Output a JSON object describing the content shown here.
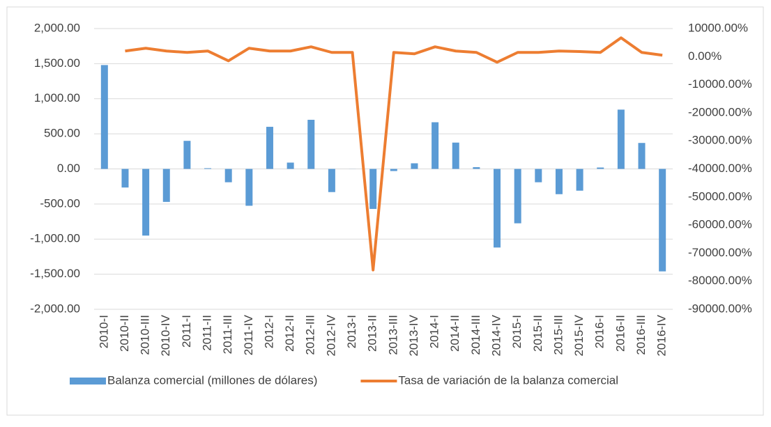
{
  "chart_data": {
    "type": "bar_line",
    "categories": [
      "2010-I",
      "2010-II",
      "2010-III",
      "2010-IV",
      "2011-I",
      "2011-II",
      "2011-III",
      "2011-IV",
      "2012-I",
      "2012-II",
      "2012-III",
      "2012-IV",
      "2013-I",
      "2013-II",
      "2013-III",
      "2013-IV",
      "2014-I",
      "2014-II",
      "2014-III",
      "2014-IV",
      "2015-I",
      "2015-II",
      "2015-III",
      "2015-IV",
      "2016-I",
      "2016-II",
      "2016-III",
      "2016-IV"
    ],
    "series": [
      {
        "name": "Balanza comercial (millones de dólares)",
        "type": "bar",
        "color": "#5b9bd5",
        "values": [
          1480,
          -265,
          -950,
          -470,
          400,
          10,
          -190,
          -525,
          600,
          90,
          700,
          -330,
          1,
          -570,
          -30,
          80,
          665,
          375,
          25,
          -1120,
          -775,
          -190,
          -360,
          -310,
          20,
          845,
          370,
          -1460
        ]
      },
      {
        "name": "Tasa de variación de la balanza comercial",
        "type": "line",
        "color": "#ed7d31",
        "axis": "y2",
        "values": [
          null,
          2000,
          3000,
          2000,
          1500,
          2000,
          -1500,
          3000,
          2000,
          2000,
          3500,
          1500,
          1500,
          -76000,
          1500,
          1000,
          3500,
          2000,
          1500,
          -2000,
          1500,
          1500,
          2000,
          1800,
          1500,
          6700,
          1500,
          500
        ]
      }
    ],
    "ylim": [
      -2000,
      2000
    ],
    "yticks": [
      {
        "value": -2000,
        "label": "-2,000.00"
      },
      {
        "value": -1500,
        "label": "-1,500.00"
      },
      {
        "value": -1000,
        "label": "-1,000.00"
      },
      {
        "value": -500,
        "label": "-500.00"
      },
      {
        "value": 0,
        "label": "0.00"
      },
      {
        "value": 500,
        "label": "500.00"
      },
      {
        "value": 1000,
        "label": "1,000.00"
      },
      {
        "value": 1500,
        "label": "1,500.00"
      },
      {
        "value": 2000,
        "label": "2,000.00"
      }
    ],
    "y2lim": [
      -90000,
      10000
    ],
    "y2ticks": [
      {
        "value": -90000,
        "label": "-90000.00%"
      },
      {
        "value": -80000,
        "label": "-80000.00%"
      },
      {
        "value": -70000,
        "label": "-70000.00%"
      },
      {
        "value": -60000,
        "label": "-60000.00%"
      },
      {
        "value": -50000,
        "label": "-50000.00%"
      },
      {
        "value": -40000,
        "label": "-40000.00%"
      },
      {
        "value": -30000,
        "label": "-30000.00%"
      },
      {
        "value": -20000,
        "label": "-20000.00%"
      },
      {
        "value": -10000,
        "label": "-10000.00%"
      },
      {
        "value": 0,
        "label": "0.00%"
      },
      {
        "value": 10000,
        "label": "10000.00%"
      }
    ],
    "grid": true,
    "legend": "bottom"
  }
}
